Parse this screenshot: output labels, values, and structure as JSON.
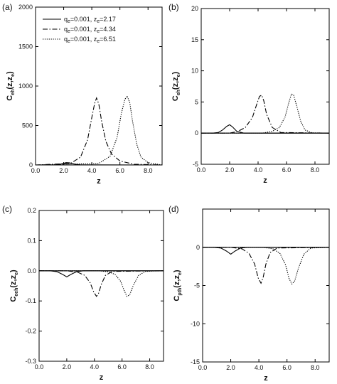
{
  "chart_data": [
    {
      "type": "line",
      "panel": "(a)",
      "xlabel": "z",
      "ylabel": "C_eh(z,z_e)",
      "xlim": [
        0,
        9
      ],
      "ylim": [
        0,
        2000
      ],
      "x_ticks": [
        0,
        2,
        4,
        6,
        8
      ],
      "x_tick_labels": [
        "0.0",
        "2.0",
        "4.0",
        "6.0",
        "8.0"
      ],
      "y_ticks": [
        0,
        500,
        1000,
        1500,
        2000
      ],
      "y_tick_labels": [
        "0",
        "500",
        "1000",
        "1500",
        "2000"
      ],
      "legend": "top-left",
      "grid": false,
      "series": [
        {
          "name": "q_e=0.001, z_e=2.17",
          "dash": "solid",
          "x": [
            0,
            1.5,
            1.9,
            2.17,
            2.4,
            2.8,
            3.2,
            9
          ],
          "y": [
            0,
            3,
            15,
            30,
            28,
            10,
            2,
            0
          ]
        },
        {
          "name": "q_e=0.001, z_e=4.34",
          "dash": "dashdot",
          "x": [
            0,
            2.5,
            3.2,
            3.7,
            4.0,
            4.2,
            4.34,
            4.5,
            4.7,
            5.0,
            5.4,
            6.0,
            7.0,
            9
          ],
          "y": [
            0,
            20,
            100,
            320,
            600,
            780,
            850,
            770,
            550,
            300,
            140,
            50,
            10,
            0
          ]
        },
        {
          "name": "q_e=0.001, z_e=6.51",
          "dash": "dotted",
          "x": [
            0,
            4.5,
            5.3,
            5.8,
            6.1,
            6.35,
            6.51,
            6.7,
            6.9,
            7.2,
            7.5,
            8.0,
            9
          ],
          "y": [
            0,
            20,
            110,
            350,
            650,
            830,
            875,
            790,
            550,
            260,
            100,
            30,
            0
          ]
        }
      ]
    },
    {
      "type": "line",
      "panel": "(b)",
      "xlabel": "z",
      "ylabel": "C_eh(z,z_e)",
      "xlim": [
        0,
        9
      ],
      "ylim": [
        -5,
        20
      ],
      "x_ticks": [
        0,
        2,
        4,
        6,
        8
      ],
      "x_tick_labels": [
        "0.0",
        "2.0",
        "4.0",
        "6.0",
        "8.0"
      ],
      "y_ticks": [
        -5,
        0,
        5,
        10,
        15,
        20
      ],
      "y_tick_labels": [
        "-5",
        "0",
        "5",
        "10",
        "15",
        "20"
      ],
      "grid": false,
      "series": [
        {
          "dash": "solid",
          "x": [
            0,
            0.8,
            1.2,
            1.5,
            1.8,
            2.0,
            2.2,
            2.5,
            3.0,
            9
          ],
          "y": [
            0,
            0,
            0.1,
            0.5,
            1.1,
            1.35,
            1.0,
            0.3,
            0,
            0
          ]
        },
        {
          "dash": "dashdot",
          "x": [
            0,
            2.0,
            2.6,
            3.1,
            3.6,
            3.9,
            4.1,
            4.25,
            4.4,
            4.6,
            5.0,
            5.6,
            9
          ],
          "y": [
            0,
            0,
            0.3,
            0.9,
            2.5,
            4.6,
            5.9,
            6.1,
            5.2,
            3.0,
            0.9,
            0.1,
            0
          ]
        },
        {
          "dash": "dotted",
          "x": [
            0,
            4.3,
            5.0,
            5.5,
            5.9,
            6.15,
            6.35,
            6.5,
            6.7,
            7.0,
            7.3,
            7.8,
            9
          ],
          "y": [
            0,
            0,
            0.3,
            0.9,
            2.6,
            4.8,
            6.3,
            6.1,
            4.5,
            1.9,
            0.5,
            0.05,
            0
          ]
        }
      ]
    },
    {
      "type": "line",
      "panel": "(c)",
      "xlabel": "z",
      "ylabel": "C_eeh(z,z_e)",
      "xlim": [
        0,
        9
      ],
      "ylim": [
        -0.3,
        0.2
      ],
      "x_ticks": [
        0,
        2,
        4,
        6,
        8
      ],
      "x_tick_labels": [
        "0.0",
        "2.0",
        "4.0",
        "6.0",
        "8.0"
      ],
      "y_ticks": [
        -0.3,
        -0.2,
        -0.1,
        0.0,
        0.1,
        0.2
      ],
      "y_tick_labels": [
        "-0.3",
        "-0.2",
        "-0.1",
        "0.0",
        "0.1",
        "0.2"
      ],
      "grid": false,
      "series": [
        {
          "dash": "solid",
          "x": [
            0,
            0.8,
            1.3,
            1.7,
            2.0,
            2.3,
            2.7,
            3.2,
            9
          ],
          "y": [
            0,
            0,
            -0.003,
            -0.012,
            -0.02,
            -0.012,
            -0.003,
            0,
            0
          ]
        },
        {
          "dash": "dashdot",
          "x": [
            0,
            2.0,
            2.8,
            3.3,
            3.7,
            3.95,
            4.15,
            4.3,
            4.5,
            4.8,
            5.3,
            9
          ],
          "y": [
            0,
            0,
            -0.005,
            -0.015,
            -0.04,
            -0.07,
            -0.085,
            -0.075,
            -0.045,
            -0.015,
            -0.002,
            0
          ]
        },
        {
          "dash": "dotted",
          "x": [
            0,
            4.3,
            5.0,
            5.5,
            5.9,
            6.15,
            6.35,
            6.55,
            6.8,
            7.2,
            7.7,
            9
          ],
          "y": [
            0,
            0,
            -0.003,
            -0.012,
            -0.035,
            -0.065,
            -0.085,
            -0.08,
            -0.05,
            -0.015,
            -0.002,
            0
          ]
        }
      ]
    },
    {
      "type": "line",
      "panel": "(d)",
      "xlabel": "z",
      "ylabel": "C_pth(z,z_e)",
      "xlim": [
        0,
        9
      ],
      "ylim": [
        -15,
        5
      ],
      "x_ticks": [
        0,
        2,
        4,
        6,
        8
      ],
      "x_tick_labels": [
        "0.0",
        "2.0",
        "4.0",
        "6.0",
        "8.0"
      ],
      "y_ticks": [
        -15,
        -10,
        -5,
        0
      ],
      "y_tick_labels": [
        "-15",
        "-10",
        "-5",
        "0"
      ],
      "grid": false,
      "series": [
        {
          "dash": "solid",
          "x": [
            0,
            0.8,
            1.3,
            1.7,
            2.0,
            2.3,
            2.7,
            3.2,
            9
          ],
          "y": [
            0,
            0,
            -0.1,
            -0.5,
            -0.9,
            -0.5,
            -0.1,
            0,
            0
          ]
        },
        {
          "dash": "dashdot",
          "x": [
            0,
            2.0,
            2.8,
            3.3,
            3.7,
            3.95,
            4.15,
            4.3,
            4.5,
            4.8,
            5.3,
            9
          ],
          "y": [
            0,
            0,
            -0.2,
            -0.8,
            -2.2,
            -4.0,
            -4.7,
            -4.0,
            -2.2,
            -0.7,
            -0.1,
            0
          ]
        },
        {
          "dash": "dotted",
          "x": [
            0,
            4.3,
            5.0,
            5.5,
            5.9,
            6.15,
            6.35,
            6.55,
            6.8,
            7.2,
            7.7,
            9
          ],
          "y": [
            0,
            0,
            -0.2,
            -0.8,
            -2.3,
            -4.1,
            -4.8,
            -4.4,
            -2.8,
            -0.9,
            -0.1,
            0
          ]
        }
      ]
    }
  ],
  "legend_entries": [
    {
      "q_sym": "q",
      "q_sub": "e",
      "q_val": "=0.001, ",
      "z_sym": "z",
      "z_sub": "e",
      "z_val": "=2.17"
    },
    {
      "q_sym": "q",
      "q_sub": "e",
      "q_val": "=0.001, ",
      "z_sym": "z",
      "z_sub": "e",
      "z_val": "=4.34"
    },
    {
      "q_sym": "q",
      "q_sub": "e",
      "q_val": "=0.001, ",
      "z_sym": "z",
      "z_sub": "e",
      "z_val": "=6.51"
    }
  ],
  "ylabels": [
    {
      "main": "C",
      "sub": "eh",
      "arg": "(z,z",
      "argsub": "e",
      "close": ")"
    },
    {
      "main": "C",
      "sub": "eh",
      "arg": "(z,z",
      "argsub": "e",
      "close": ")"
    },
    {
      "main": "C",
      "sub": "eeh",
      "arg": "(z,z",
      "argsub": "e",
      "close": ")"
    },
    {
      "main": "C",
      "sub": "pth",
      "arg": "(z,z",
      "argsub": "e",
      "close": ")"
    }
  ],
  "colors": {
    "line": "#000000",
    "axis": "#000000",
    "background": "#ffffff"
  }
}
